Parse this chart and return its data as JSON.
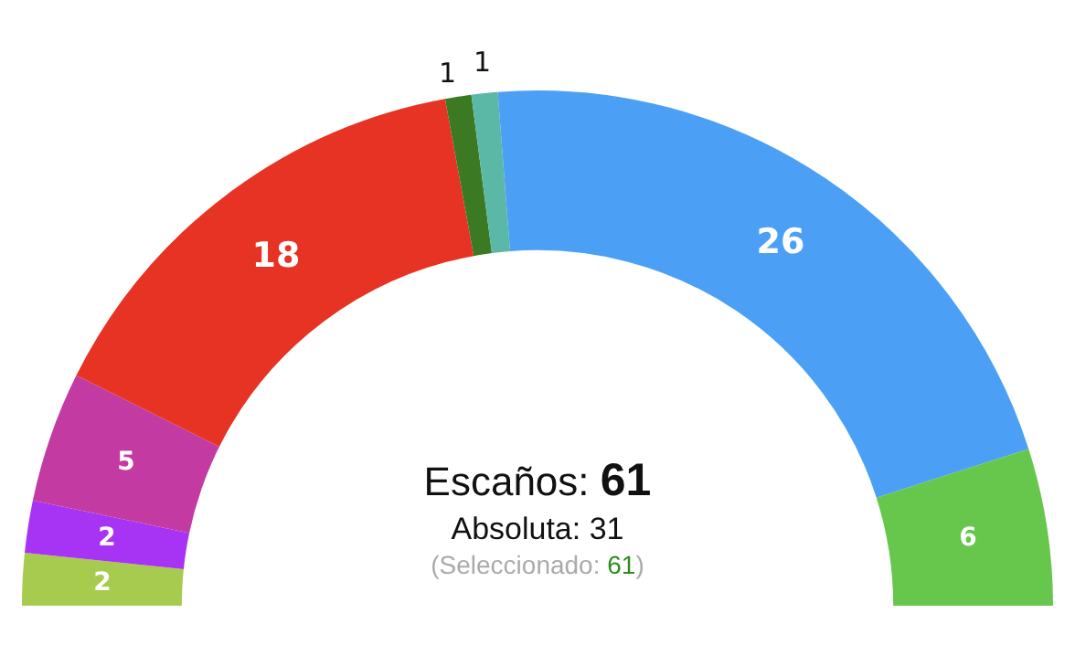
{
  "chart_data": {
    "type": "donut",
    "categories": [
      null,
      null,
      null,
      null,
      null,
      null,
      null,
      null
    ],
    "values": [
      2,
      2,
      5,
      18,
      1,
      1,
      26,
      6
    ],
    "colors": [
      "#a6cb4e",
      "#a733f5",
      "#c43aa3",
      "#e63323",
      "#3b7a22",
      "#5bb8a6",
      "#4ba0f6",
      "#67c74d"
    ],
    "data_labels": true,
    "legend": false,
    "annotations": [
      "Escaños: 61",
      "Absoluta: 31",
      "(Seleccionado: 61)"
    ]
  }
}
